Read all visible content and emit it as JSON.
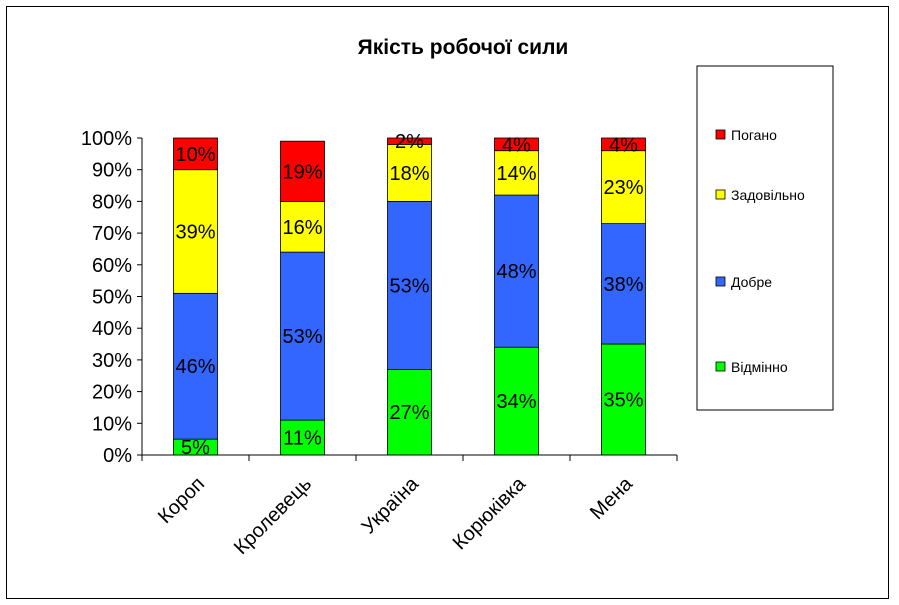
{
  "chart_data": {
    "type": "bar",
    "stacked": true,
    "percent": true,
    "title": "Якість робочої сили",
    "xlabel": "",
    "ylabel": "",
    "ylim": [
      0,
      100
    ],
    "yticks": [
      "0%",
      "10%",
      "20%",
      "30%",
      "40%",
      "50%",
      "60%",
      "70%",
      "80%",
      "90%",
      "100%"
    ],
    "categories": [
      "Короп",
      "Кролевець",
      "Україна",
      "Корюківка",
      "Мена"
    ],
    "series": [
      {
        "name": "Відмінно",
        "color": "#00ff00",
        "values": [
          5,
          11,
          27,
          34,
          35
        ],
        "labels": [
          "5%",
          "11%",
          "27%",
          "34%",
          "35%"
        ]
      },
      {
        "name": "Добре",
        "color": "#3366ff",
        "values": [
          46,
          53,
          53,
          48,
          38
        ],
        "labels": [
          "46%",
          "53%",
          "53%",
          "48%",
          "38%"
        ]
      },
      {
        "name": "Задовільно",
        "color": "#ffff00",
        "values": [
          39,
          16,
          18,
          14,
          23
        ],
        "labels": [
          "39%",
          "16%",
          "18%",
          "14%",
          "23%"
        ]
      },
      {
        "name": "Погано",
        "color": "#ff0000",
        "values": [
          10,
          19,
          2,
          4,
          4
        ],
        "labels": [
          "10%",
          "19%",
          "2%",
          "4%",
          "4%"
        ]
      }
    ],
    "legend": {
      "position": "right",
      "order": [
        "Погано",
        "Задовільно",
        "Добре",
        "Відмінно"
      ]
    },
    "grid": false
  }
}
